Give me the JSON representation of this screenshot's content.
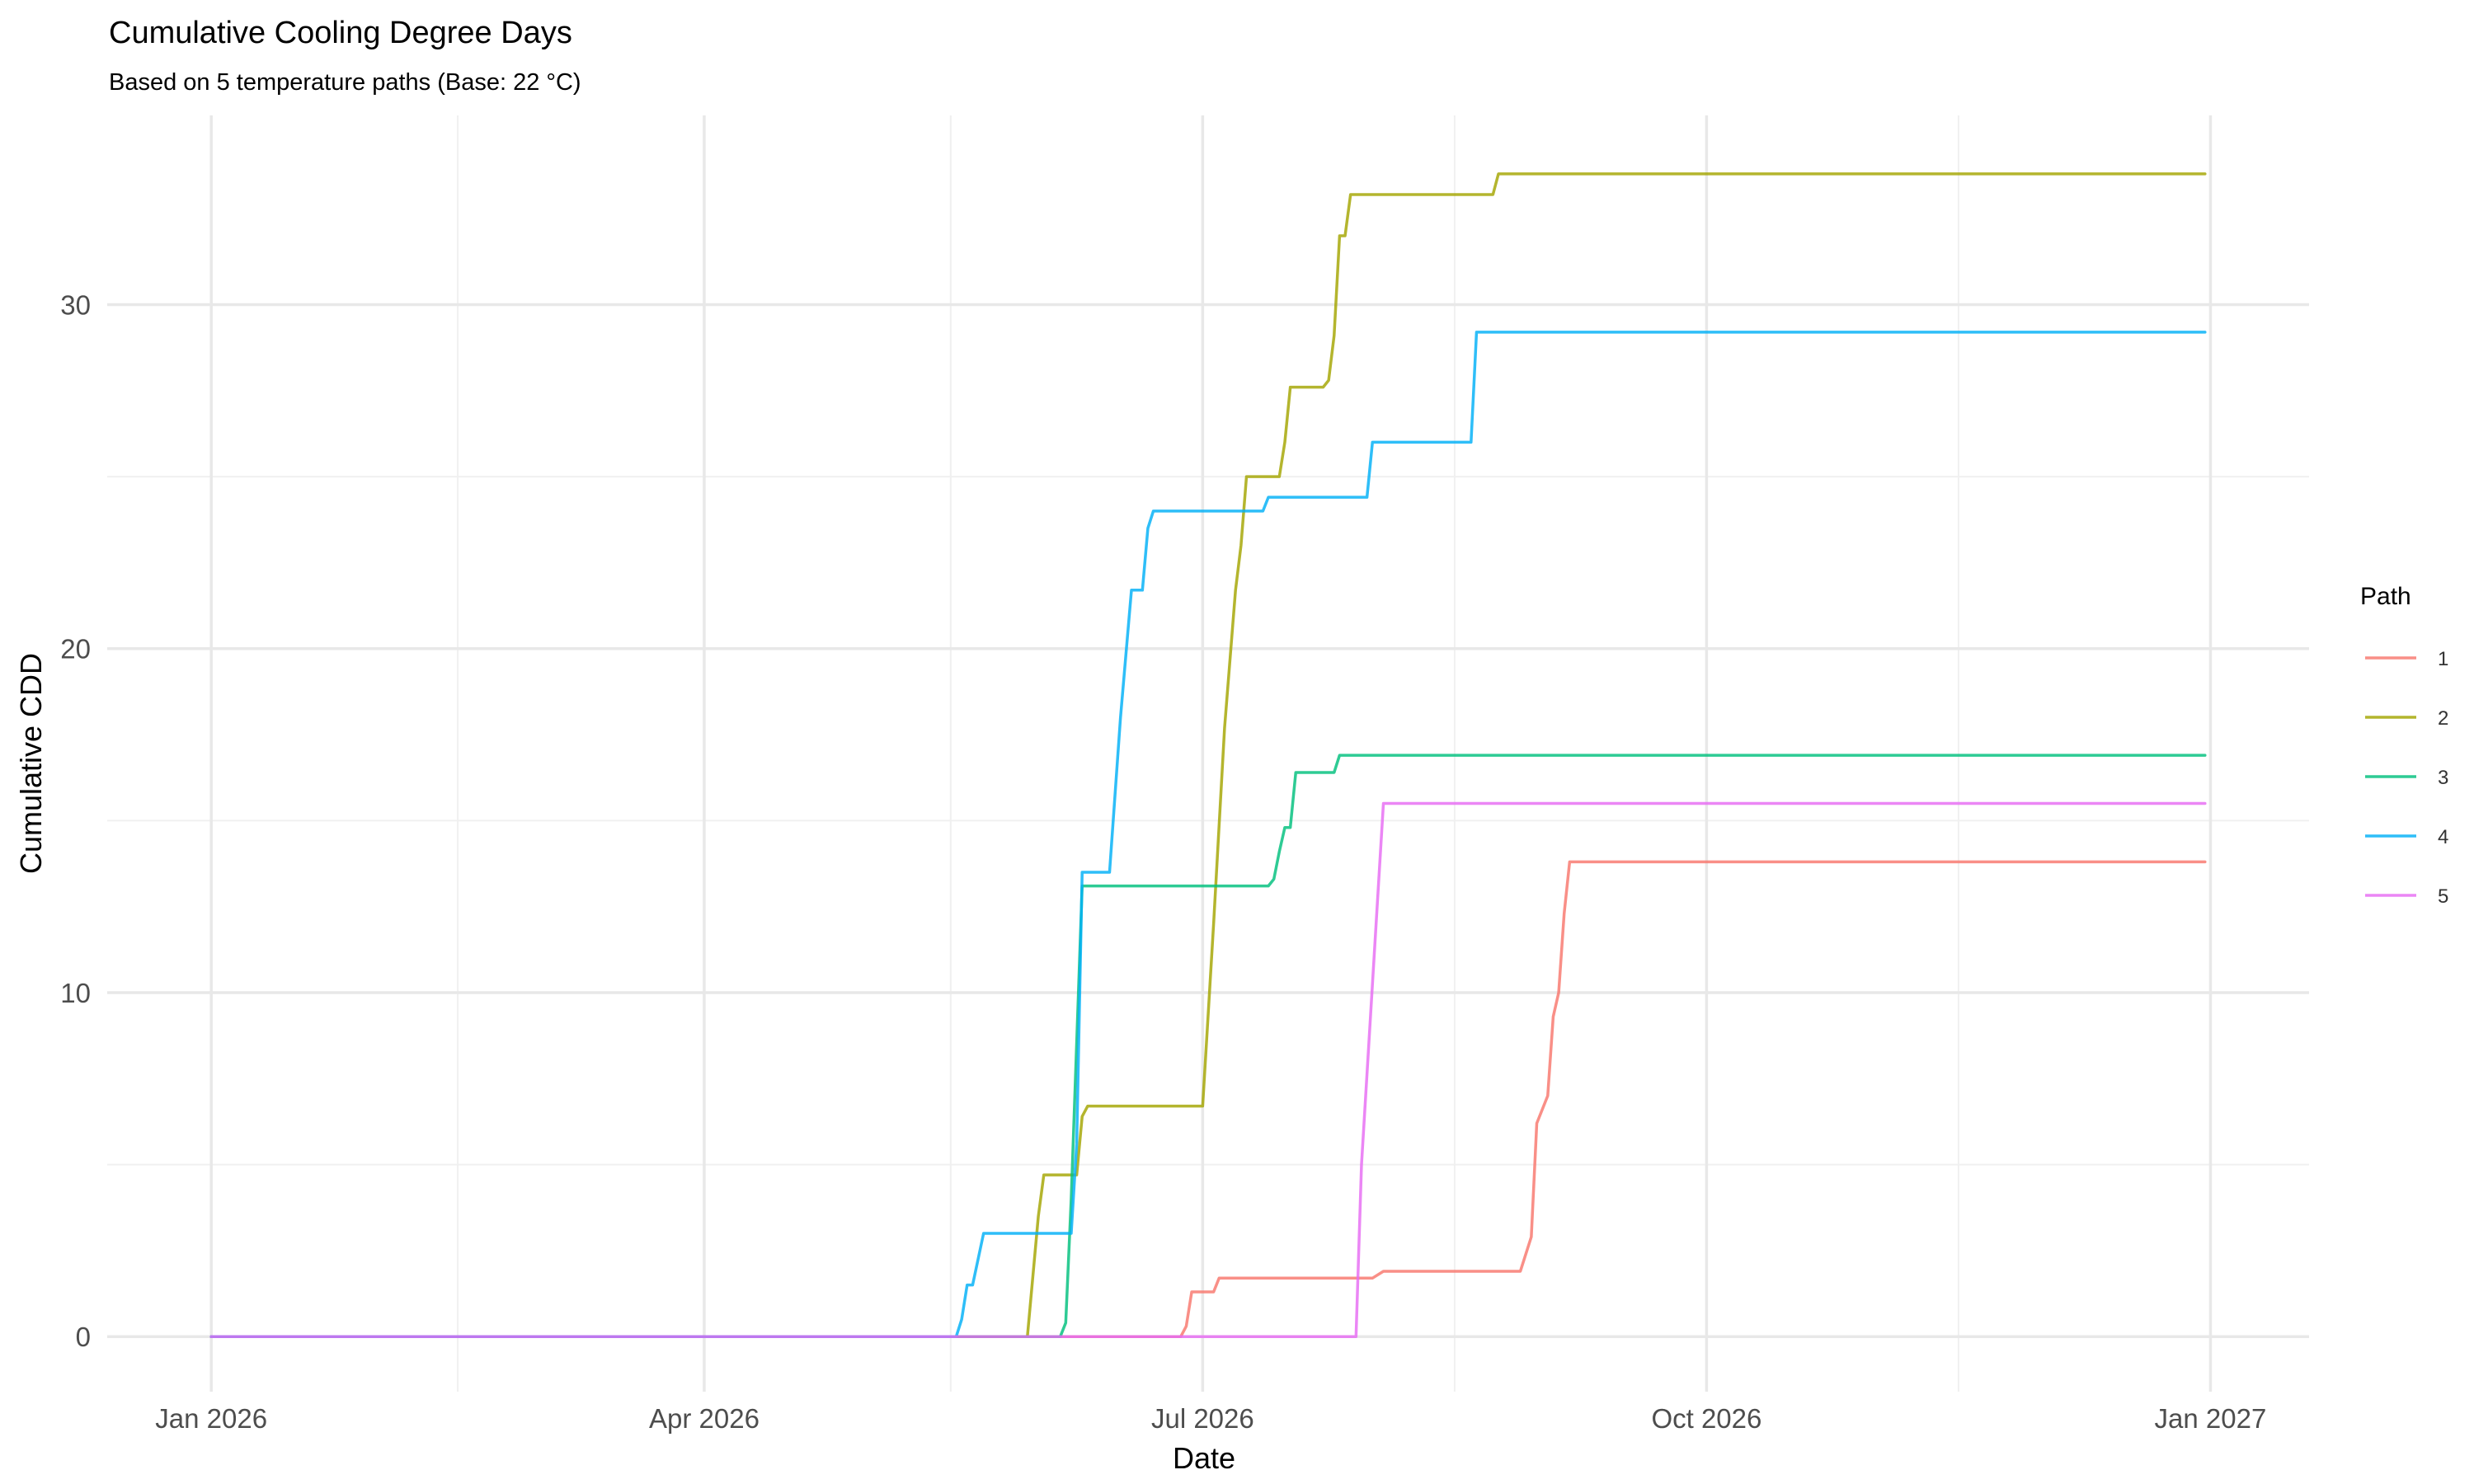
{
  "chart_data": {
    "type": "line",
    "title": "Cumulative Cooling Degree Days",
    "subtitle": "Based on 5 temperature paths (Base: 22 °C)",
    "xlabel": "Date",
    "ylabel": "Cumulative CDD",
    "x_type": "date",
    "xlim": [
      "2025-12-13",
      "2027-01-19"
    ],
    "ylim": [
      -1.6,
      35.5
    ],
    "x_ticks": [
      {
        "date": "2026-01-01",
        "label": "Jan 2026"
      },
      {
        "date": "2026-04-01",
        "label": "Apr 2026"
      },
      {
        "date": "2026-07-01",
        "label": "Jul 2026"
      },
      {
        "date": "2026-10-01",
        "label": "Oct 2026"
      },
      {
        "date": "2027-01-01",
        "label": "Jan 2027"
      }
    ],
    "x_minor_ticks": [
      "2026-02-15",
      "2026-05-16",
      "2026-08-16",
      "2026-11-16"
    ],
    "y_ticks": [
      0,
      10,
      20,
      30
    ],
    "y_minor_ticks": [
      5,
      15,
      25
    ],
    "grid": true,
    "legend": {
      "title": "Path",
      "position": "right"
    },
    "series": [
      {
        "name": "1",
        "color": "#F8766D",
        "points": [
          [
            "2026-01-01",
            0
          ],
          [
            "2026-06-27",
            0
          ],
          [
            "2026-06-28",
            0.3
          ],
          [
            "2026-06-29",
            1.3
          ],
          [
            "2026-07-03",
            1.3
          ],
          [
            "2026-07-04",
            1.7
          ],
          [
            "2026-08-01",
            1.7
          ],
          [
            "2026-08-03",
            1.9
          ],
          [
            "2026-08-28",
            1.9
          ],
          [
            "2026-08-30",
            2.9
          ],
          [
            "2026-08-31",
            6.2
          ],
          [
            "2026-09-02",
            7.0
          ],
          [
            "2026-09-03",
            9.3
          ],
          [
            "2026-09-04",
            10.0
          ],
          [
            "2026-09-05",
            12.3
          ],
          [
            "2026-09-06",
            13.8
          ],
          [
            "2026-12-31",
            13.8
          ]
        ]
      },
      {
        "name": "2",
        "color": "#A3A500",
        "points": [
          [
            "2026-01-01",
            0
          ],
          [
            "2026-05-30",
            0
          ],
          [
            "2026-06-01",
            3.5
          ],
          [
            "2026-06-02",
            4.7
          ],
          [
            "2026-06-08",
            4.7
          ],
          [
            "2026-06-09",
            6.4
          ],
          [
            "2026-06-10",
            6.7
          ],
          [
            "2026-07-01",
            6.7
          ],
          [
            "2026-07-03",
            12.0
          ],
          [
            "2026-07-05",
            17.7
          ],
          [
            "2026-07-07",
            21.7
          ],
          [
            "2026-07-08",
            23.0
          ],
          [
            "2026-07-09",
            25.0
          ],
          [
            "2026-07-15",
            25.0
          ],
          [
            "2026-07-16",
            26.0
          ],
          [
            "2026-07-17",
            27.6
          ],
          [
            "2026-07-23",
            27.6
          ],
          [
            "2026-07-24",
            27.8
          ],
          [
            "2026-07-25",
            29.1
          ],
          [
            "2026-07-26",
            32.0
          ],
          [
            "2026-07-27",
            32.0
          ],
          [
            "2026-07-28",
            33.2
          ],
          [
            "2026-08-23",
            33.2
          ],
          [
            "2026-08-24",
            33.8
          ],
          [
            "2026-12-31",
            33.8
          ]
        ]
      },
      {
        "name": "3",
        "color": "#00BF7D",
        "points": [
          [
            "2026-01-01",
            0
          ],
          [
            "2026-06-05",
            0
          ],
          [
            "2026-06-06",
            0.4
          ],
          [
            "2026-06-07",
            4.0
          ],
          [
            "2026-06-09",
            13.1
          ],
          [
            "2026-07-13",
            13.1
          ],
          [
            "2026-07-14",
            13.3
          ],
          [
            "2026-07-15",
            14.1
          ],
          [
            "2026-07-16",
            14.8
          ],
          [
            "2026-07-17",
            14.8
          ],
          [
            "2026-07-18",
            16.4
          ],
          [
            "2026-07-25",
            16.4
          ],
          [
            "2026-07-26",
            16.9
          ],
          [
            "2026-12-31",
            16.9
          ]
        ]
      },
      {
        "name": "4",
        "color": "#00B0F6",
        "points": [
          [
            "2026-01-01",
            0
          ],
          [
            "2026-05-17",
            0
          ],
          [
            "2026-05-18",
            0.5
          ],
          [
            "2026-05-19",
            1.5
          ],
          [
            "2026-05-20",
            1.5
          ],
          [
            "2026-05-22",
            3.0
          ],
          [
            "2026-06-07",
            3.0
          ],
          [
            "2026-06-08",
            5.6
          ],
          [
            "2026-06-09",
            13.5
          ],
          [
            "2026-06-14",
            13.5
          ],
          [
            "2026-06-16",
            18.0
          ],
          [
            "2026-06-18",
            21.7
          ],
          [
            "2026-06-20",
            21.7
          ],
          [
            "2026-06-21",
            23.5
          ],
          [
            "2026-06-22",
            24.0
          ],
          [
            "2026-07-12",
            24.0
          ],
          [
            "2026-07-13",
            24.4
          ],
          [
            "2026-07-31",
            24.4
          ],
          [
            "2026-08-01",
            26.0
          ],
          [
            "2026-08-19",
            26.0
          ],
          [
            "2026-08-20",
            29.2
          ],
          [
            "2026-12-31",
            29.2
          ]
        ]
      },
      {
        "name": "5",
        "color": "#E76BF3",
        "points": [
          [
            "2026-01-01",
            0
          ],
          [
            "2026-07-29",
            0
          ],
          [
            "2026-07-30",
            5.0
          ],
          [
            "2026-08-03",
            15.5
          ],
          [
            "2026-12-31",
            15.5
          ]
        ]
      }
    ]
  }
}
